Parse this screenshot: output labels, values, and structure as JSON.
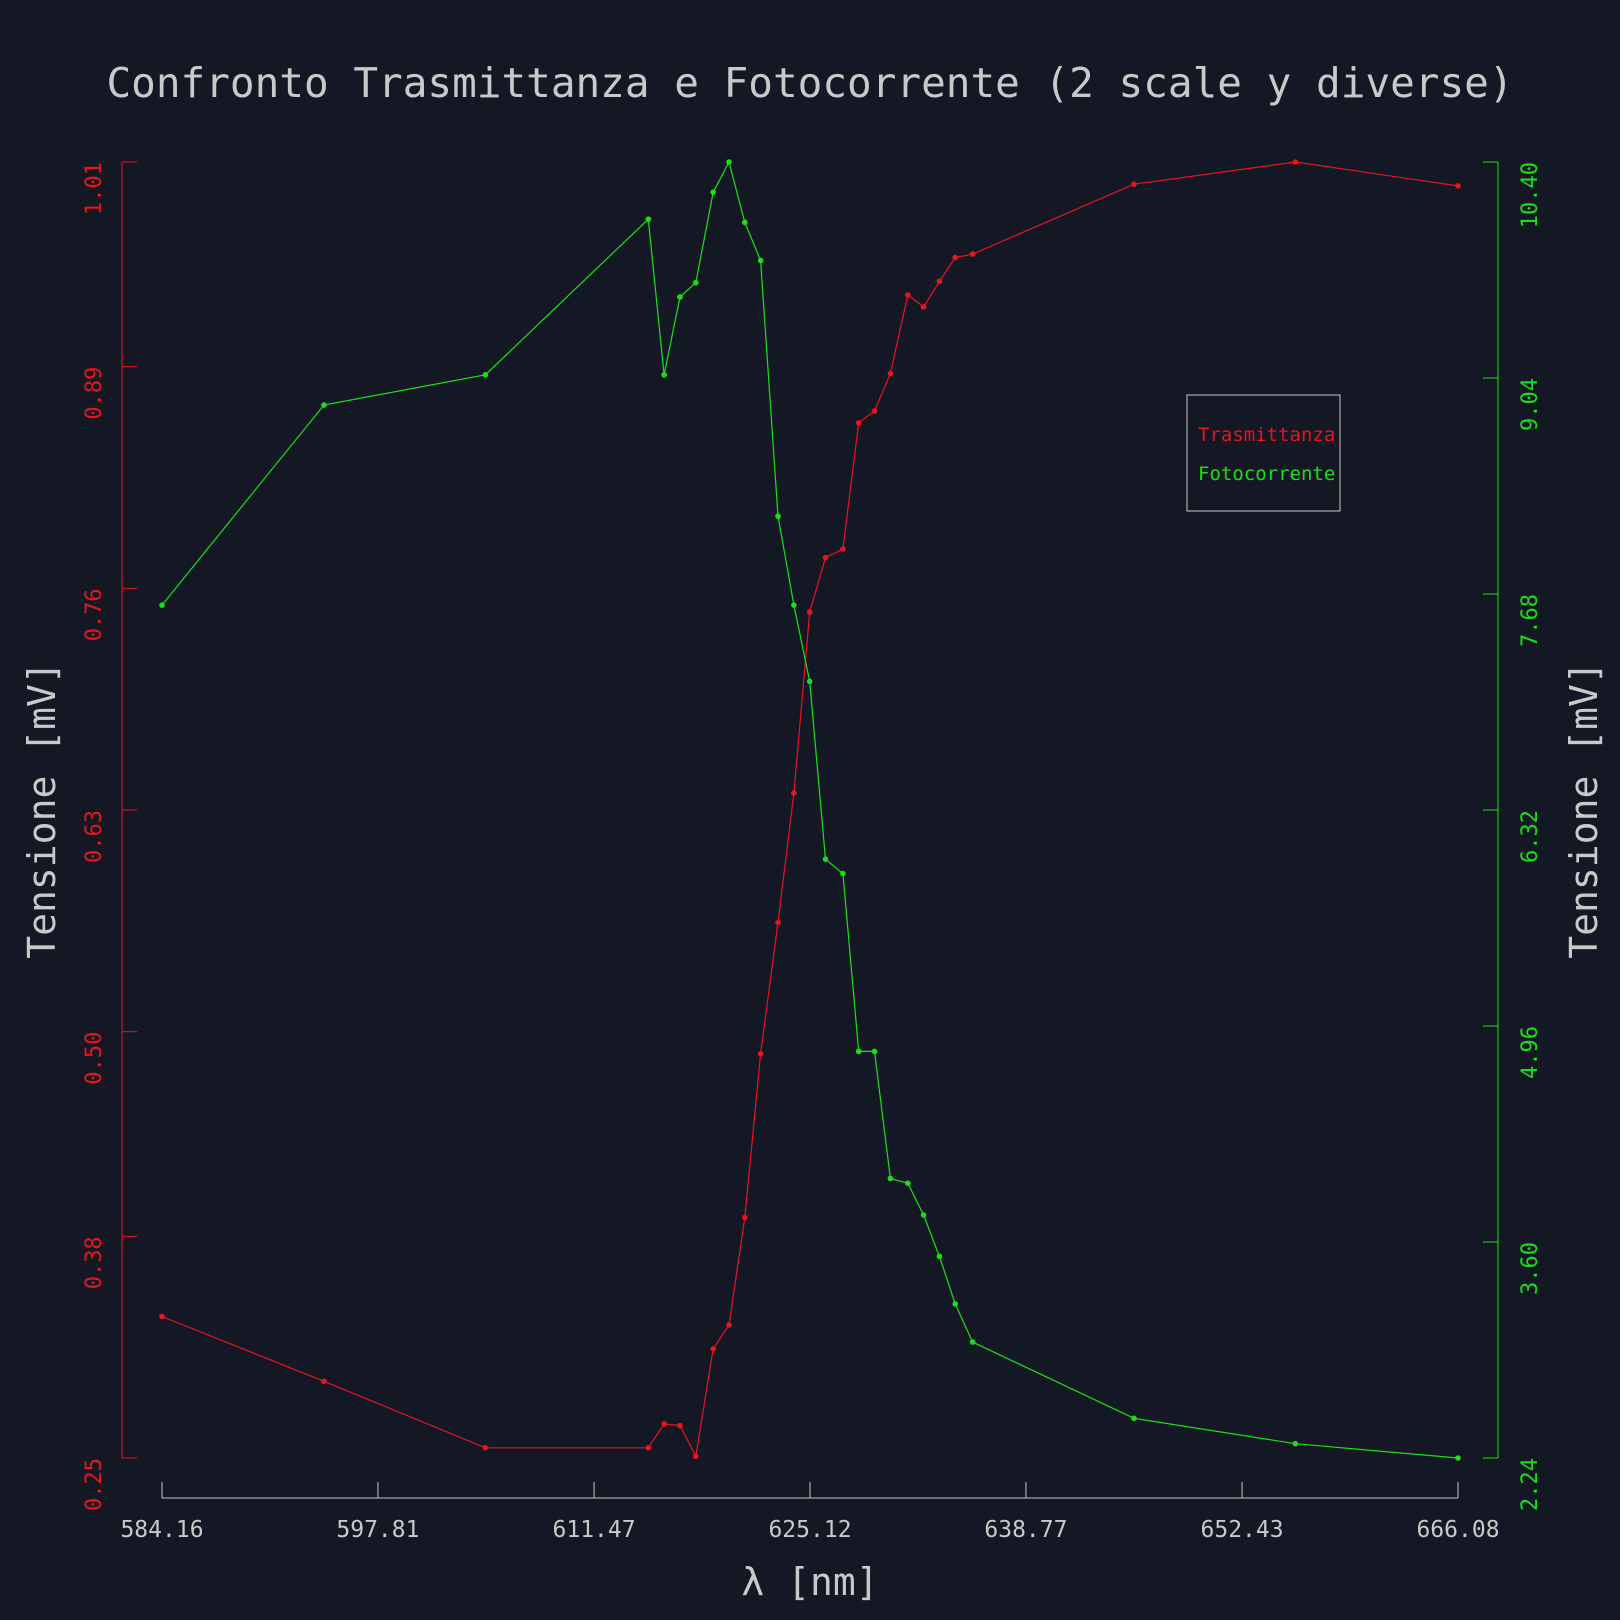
{
  "chart_data": {
    "type": "line",
    "title": "Confronto Trasmittanza e Fotocorrente (2 scale y diverse)",
    "xlabel": "λ [nm]",
    "ylabel_left": "Tensione [mV]",
    "ylabel_right": "Tensione [mV]",
    "xlim": [
      584.16,
      666.08
    ],
    "ylim_left": [
      0.25,
      1.01
    ],
    "ylim_right": [
      2.24,
      10.4
    ],
    "xticks": [
      "584.16",
      "597.81",
      "611.47",
      "625.12",
      "638.77",
      "652.43",
      "666.08"
    ],
    "yticks_left": [
      "0.25",
      "0.38",
      "0.50",
      "0.63",
      "0.76",
      "0.89",
      "1.01"
    ],
    "yticks_right": [
      "2.24",
      "3.60",
      "4.96",
      "6.32",
      "7.68",
      "9.04",
      "10.40"
    ],
    "grid": false,
    "legend_position": "top-right",
    "colors": {
      "Trasmittanza": "#e8141e",
      "Fotocorrente": "#18e018",
      "text": "#c9c9c9",
      "background": "#141824"
    },
    "series": [
      {
        "name": "Trasmittanza",
        "axis": "left",
        "x": [
          584.16,
          594.4,
          604.6,
          614.9,
          615.9,
          616.9,
          617.9,
          619.0,
          620.0,
          621.0,
          622.0,
          623.1,
          624.1,
          625.1,
          626.1,
          627.2,
          628.2,
          629.2,
          630.2,
          631.3,
          632.3,
          633.3,
          634.3,
          635.4,
          645.6,
          655.8,
          666.08
        ],
        "y": [
          0.333,
          0.295,
          0.256,
          0.256,
          0.27,
          0.269,
          0.251,
          0.314,
          0.328,
          0.391,
          0.487,
          0.564,
          0.64,
          0.746,
          0.778,
          0.783,
          0.857,
          0.864,
          0.886,
          0.932,
          0.925,
          0.94,
          0.954,
          0.956,
          0.997,
          1.01,
          0.996
        ]
      },
      {
        "name": "Fotocorrente",
        "axis": "right",
        "x": [
          584.16,
          594.4,
          604.6,
          614.9,
          615.9,
          616.9,
          617.9,
          619.0,
          620.0,
          621.0,
          622.0,
          623.1,
          624.1,
          625.1,
          626.1,
          627.2,
          628.2,
          629.2,
          630.2,
          631.3,
          632.3,
          633.3,
          634.3,
          635.4,
          645.6,
          655.8,
          666.08
        ],
        "y": [
          7.61,
          8.87,
          9.06,
          10.04,
          9.06,
          9.55,
          9.64,
          10.21,
          10.4,
          10.02,
          9.78,
          8.17,
          7.61,
          7.13,
          6.01,
          5.92,
          4.8,
          4.8,
          4.0,
          3.97,
          3.77,
          3.51,
          3.21,
          2.97,
          2.49,
          2.33,
          2.24
        ]
      }
    ]
  }
}
